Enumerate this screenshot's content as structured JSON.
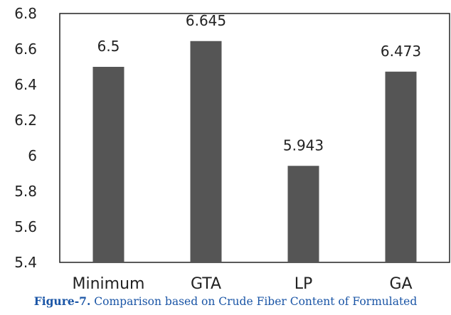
{
  "chart_data": {
    "type": "bar",
    "categories": [
      "Minimum",
      "GTA",
      "LP",
      "GA"
    ],
    "values": [
      6.5,
      6.645,
      5.943,
      6.473
    ],
    "data_labels": [
      "6.5",
      "6.645",
      "5.943",
      "6.473"
    ],
    "ylim": [
      5.4,
      6.8
    ],
    "yticks": [
      "6.8",
      "6.6",
      "6.4",
      "6.2",
      "6",
      "5.8",
      "5.6",
      "5.4"
    ],
    "grid": false,
    "bar_color": "#555555"
  },
  "caption": {
    "figure_label": "Figure-7.",
    "text": "Comparison based on Crude Fiber Content of Formulated"
  }
}
